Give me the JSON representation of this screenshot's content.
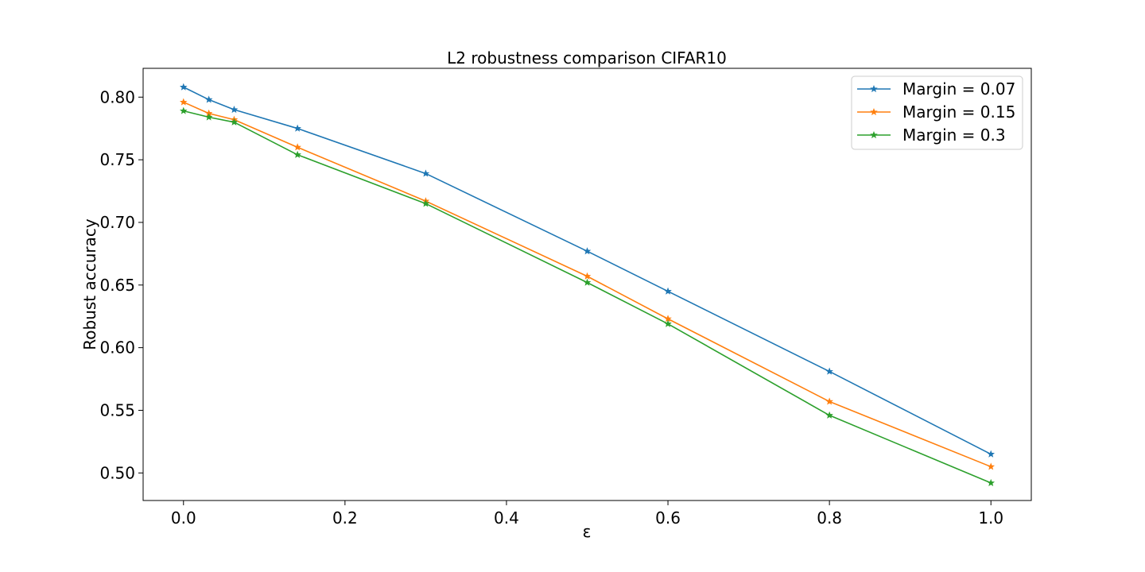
{
  "chart_data": {
    "type": "line",
    "title": "L2 robustness comparison CIFAR10",
    "xlabel": "ε",
    "ylabel": "Robust accuracy",
    "xlim": [
      -0.05,
      1.05
    ],
    "ylim": [
      0.478,
      0.823
    ],
    "xticks": [
      0.0,
      0.2,
      0.4,
      0.6,
      0.8,
      1.0
    ],
    "xtick_labels": [
      "0.0",
      "0.2",
      "0.4",
      "0.6",
      "0.8",
      "1.0"
    ],
    "yticks": [
      0.5,
      0.55,
      0.6,
      0.65,
      0.7,
      0.75,
      0.8
    ],
    "ytick_labels": [
      "0.50",
      "0.55",
      "0.60",
      "0.65",
      "0.70",
      "0.75",
      "0.80"
    ],
    "grid": false,
    "legend_position": "top-right",
    "x": [
      0.0,
      0.0314,
      0.0627,
      0.1412,
      0.3,
      0.5,
      0.6,
      0.8,
      1.0
    ],
    "series": [
      {
        "name": "Margin = 0.07",
        "color": "#1f77b4",
        "marker": "star",
        "values": [
          0.808,
          0.798,
          0.79,
          0.775,
          0.739,
          0.677,
          0.645,
          0.581,
          0.515
        ]
      },
      {
        "name": "Margin = 0.15",
        "color": "#ff7f0e",
        "marker": "star",
        "values": [
          0.796,
          0.787,
          0.782,
          0.76,
          0.717,
          0.657,
          0.623,
          0.557,
          0.505
        ]
      },
      {
        "name": "Margin = 0.3",
        "color": "#2ca02c",
        "marker": "star",
        "values": [
          0.789,
          0.784,
          0.78,
          0.754,
          0.715,
          0.652,
          0.619,
          0.546,
          0.492
        ]
      }
    ]
  }
}
